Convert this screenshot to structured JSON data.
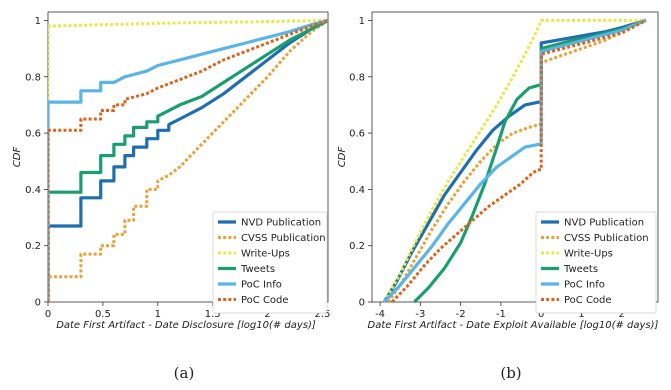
{
  "chart_data": [
    {
      "type": "line",
      "panel_label": "(a)",
      "xlabel": "Date First Artifact - Date Disclosure [log10(# days)]",
      "ylabel": "CDF",
      "xlim": [
        0,
        2.55
      ],
      "ylim": [
        0,
        1.03
      ],
      "xticks": [
        "0",
        "0.5",
        "1",
        "1.5",
        "2",
        "2.5"
      ],
      "yticks": [
        "0",
        "0.2",
        "0.4",
        "0.6",
        "0.8",
        "1"
      ],
      "grid": false,
      "legend_position": "bottom-right",
      "series": [
        {
          "name": "NVD Publication",
          "color": "#1f6fae",
          "dash": "solid",
          "points": [
            [
              0,
              0
            ],
            [
              0,
              0.27
            ],
            [
              0.3,
              0.27
            ],
            [
              0.3,
              0.37
            ],
            [
              0.48,
              0.37
            ],
            [
              0.48,
              0.43
            ],
            [
              0.6,
              0.43
            ],
            [
              0.6,
              0.48
            ],
            [
              0.7,
              0.48
            ],
            [
              0.7,
              0.52
            ],
            [
              0.78,
              0.52
            ],
            [
              0.78,
              0.55
            ],
            [
              0.9,
              0.55
            ],
            [
              0.9,
              0.58
            ],
            [
              1.0,
              0.58
            ],
            [
              1.0,
              0.61
            ],
            [
              1.1,
              0.61
            ],
            [
              1.1,
              0.63
            ],
            [
              1.2,
              0.65
            ],
            [
              1.4,
              0.69
            ],
            [
              1.6,
              0.74
            ],
            [
              1.8,
              0.8
            ],
            [
              2.0,
              0.86
            ],
            [
              2.2,
              0.92
            ],
            [
              2.4,
              0.97
            ],
            [
              2.55,
              1.0
            ]
          ]
        },
        {
          "name": "CVSS Publication",
          "color": "#e8a23a",
          "dash": "dotted",
          "points": [
            [
              0,
              0
            ],
            [
              0,
              0.09
            ],
            [
              0.3,
              0.09
            ],
            [
              0.3,
              0.17
            ],
            [
              0.48,
              0.17
            ],
            [
              0.48,
              0.2
            ],
            [
              0.6,
              0.2
            ],
            [
              0.6,
              0.24
            ],
            [
              0.7,
              0.24
            ],
            [
              0.7,
              0.29
            ],
            [
              0.78,
              0.29
            ],
            [
              0.78,
              0.34
            ],
            [
              0.9,
              0.34
            ],
            [
              0.9,
              0.4
            ],
            [
              1.0,
              0.4
            ],
            [
              1.0,
              0.43
            ],
            [
              1.1,
              0.45
            ],
            [
              1.2,
              0.48
            ],
            [
              1.3,
              0.52
            ],
            [
              1.4,
              0.56
            ],
            [
              1.6,
              0.64
            ],
            [
              1.8,
              0.72
            ],
            [
              2.0,
              0.8
            ],
            [
              2.2,
              0.89
            ],
            [
              2.4,
              0.96
            ],
            [
              2.55,
              1.0
            ]
          ]
        },
        {
          "name": "Write-Ups",
          "color": "#e8e84a",
          "dash": "dotted",
          "points": [
            [
              0,
              0
            ],
            [
              0,
              0.98
            ],
            [
              0.5,
              0.985
            ],
            [
              1.0,
              0.99
            ],
            [
              1.5,
              0.993
            ],
            [
              2.0,
              0.996
            ],
            [
              2.55,
              1.0
            ]
          ]
        },
        {
          "name": "Tweets",
          "color": "#1a9e6e",
          "dash": "solid",
          "points": [
            [
              0,
              0
            ],
            [
              0,
              0.39
            ],
            [
              0.3,
              0.39
            ],
            [
              0.3,
              0.46
            ],
            [
              0.48,
              0.46
            ],
            [
              0.48,
              0.52
            ],
            [
              0.6,
              0.52
            ],
            [
              0.6,
              0.56
            ],
            [
              0.7,
              0.56
            ],
            [
              0.7,
              0.59
            ],
            [
              0.78,
              0.59
            ],
            [
              0.78,
              0.62
            ],
            [
              0.9,
              0.62
            ],
            [
              0.9,
              0.64
            ],
            [
              1.0,
              0.64
            ],
            [
              1.0,
              0.66
            ],
            [
              1.2,
              0.7
            ],
            [
              1.4,
              0.73
            ],
            [
              1.6,
              0.78
            ],
            [
              1.8,
              0.83
            ],
            [
              2.0,
              0.88
            ],
            [
              2.2,
              0.93
            ],
            [
              2.4,
              0.97
            ],
            [
              2.55,
              1.0
            ]
          ]
        },
        {
          "name": "PoC Info",
          "color": "#5ab4e5",
          "dash": "solid",
          "points": [
            [
              0,
              0
            ],
            [
              0,
              0.71
            ],
            [
              0.3,
              0.71
            ],
            [
              0.3,
              0.75
            ],
            [
              0.48,
              0.75
            ],
            [
              0.48,
              0.78
            ],
            [
              0.6,
              0.78
            ],
            [
              0.7,
              0.8
            ],
            [
              0.9,
              0.82
            ],
            [
              1.0,
              0.84
            ],
            [
              1.2,
              0.86
            ],
            [
              1.4,
              0.88
            ],
            [
              1.6,
              0.9
            ],
            [
              1.8,
              0.92
            ],
            [
              2.0,
              0.94
            ],
            [
              2.2,
              0.96
            ],
            [
              2.4,
              0.985
            ],
            [
              2.55,
              1.0
            ]
          ]
        },
        {
          "name": "PoC Code",
          "color": "#d9641c",
          "dash": "dotted",
          "points": [
            [
              0,
              0
            ],
            [
              0,
              0.61
            ],
            [
              0.3,
              0.61
            ],
            [
              0.3,
              0.65
            ],
            [
              0.48,
              0.65
            ],
            [
              0.48,
              0.68
            ],
            [
              0.6,
              0.68
            ],
            [
              0.6,
              0.7
            ],
            [
              0.7,
              0.7
            ],
            [
              0.7,
              0.72
            ],
            [
              0.9,
              0.74
            ],
            [
              1.0,
              0.76
            ],
            [
              1.2,
              0.79
            ],
            [
              1.4,
              0.82
            ],
            [
              1.6,
              0.86
            ],
            [
              1.8,
              0.89
            ],
            [
              2.0,
              0.92
            ],
            [
              2.2,
              0.95
            ],
            [
              2.4,
              0.98
            ],
            [
              2.55,
              1.0
            ]
          ]
        }
      ]
    },
    {
      "type": "line",
      "panel_label": "(b)",
      "xlabel": "Date First Artifact - Date Exploit Available [log10(# days)]",
      "ylabel": "CDF",
      "xlim": [
        -4.2,
        2.9
      ],
      "ylim": [
        0,
        1.03
      ],
      "xticks": [
        "-4",
        "-3",
        "-2",
        "-1",
        "0",
        "1",
        "2"
      ],
      "yticks": [
        "0",
        "0.2",
        "0.4",
        "0.6",
        "0.8",
        "1"
      ],
      "grid": false,
      "legend_position": "bottom-right",
      "series": [
        {
          "name": "NVD Publication",
          "color": "#1f6fae",
          "dash": "solid",
          "points": [
            [
              -3.9,
              0
            ],
            [
              -3.6,
              0.07
            ],
            [
              -3.2,
              0.18
            ],
            [
              -2.8,
              0.28
            ],
            [
              -2.4,
              0.38
            ],
            [
              -2.0,
              0.46
            ],
            [
              -1.6,
              0.54
            ],
            [
              -1.2,
              0.61
            ],
            [
              -0.8,
              0.66
            ],
            [
              -0.4,
              0.7
            ],
            [
              -0.05,
              0.71
            ],
            [
              0,
              0.71
            ],
            [
              0,
              0.92
            ],
            [
              0.4,
              0.93
            ],
            [
              0.8,
              0.94
            ],
            [
              1.2,
              0.95
            ],
            [
              1.6,
              0.96
            ],
            [
              2.0,
              0.975
            ],
            [
              2.6,
              1.0
            ]
          ]
        },
        {
          "name": "CVSS Publication",
          "color": "#e8a23a",
          "dash": "dotted",
          "points": [
            [
              -3.8,
              0
            ],
            [
              -3.5,
              0.06
            ],
            [
              -3.1,
              0.16
            ],
            [
              -2.7,
              0.26
            ],
            [
              -2.3,
              0.35
            ],
            [
              -1.9,
              0.43
            ],
            [
              -1.5,
              0.5
            ],
            [
              -1.1,
              0.56
            ],
            [
              -0.7,
              0.6
            ],
            [
              -0.3,
              0.62
            ],
            [
              -0.05,
              0.63
            ],
            [
              0,
              0.63
            ],
            [
              0,
              0.85
            ],
            [
              0.4,
              0.87
            ],
            [
              0.8,
              0.89
            ],
            [
              1.2,
              0.91
            ],
            [
              1.6,
              0.93
            ],
            [
              2.0,
              0.96
            ],
            [
              2.6,
              1.0
            ]
          ]
        },
        {
          "name": "Write-Ups",
          "color": "#e8e84a",
          "dash": "dotted",
          "points": [
            [
              -3.9,
              0
            ],
            [
              -3.5,
              0.1
            ],
            [
              -3.1,
              0.22
            ],
            [
              -2.7,
              0.33
            ],
            [
              -2.3,
              0.43
            ],
            [
              -1.9,
              0.52
            ],
            [
              -1.5,
              0.61
            ],
            [
              -1.1,
              0.7
            ],
            [
              -0.7,
              0.8
            ],
            [
              -0.4,
              0.88
            ],
            [
              -0.15,
              0.95
            ],
            [
              0,
              1.0
            ],
            [
              2.6,
              1.0
            ]
          ]
        },
        {
          "name": "Tweets",
          "color": "#1a9e6e",
          "dash": "solid",
          "points": [
            [
              -3.15,
              0
            ],
            [
              -2.8,
              0.05
            ],
            [
              -2.4,
              0.12
            ],
            [
              -2.0,
              0.21
            ],
            [
              -1.7,
              0.31
            ],
            [
              -1.4,
              0.42
            ],
            [
              -1.1,
              0.55
            ],
            [
              -0.9,
              0.64
            ],
            [
              -0.6,
              0.72
            ],
            [
              -0.3,
              0.76
            ],
            [
              -0.05,
              0.77
            ],
            [
              0,
              0.77
            ],
            [
              0,
              0.9
            ],
            [
              0.4,
              0.915
            ],
            [
              0.8,
              0.93
            ],
            [
              1.2,
              0.94
            ],
            [
              1.6,
              0.955
            ],
            [
              2.0,
              0.97
            ],
            [
              2.6,
              1.0
            ]
          ]
        },
        {
          "name": "PoC Info",
          "color": "#5ab4e5",
          "dash": "solid",
          "points": [
            [
              -3.9,
              0
            ],
            [
              -3.5,
              0.06
            ],
            [
              -3.1,
              0.13
            ],
            [
              -2.7,
              0.2
            ],
            [
              -2.3,
              0.28
            ],
            [
              -1.9,
              0.35
            ],
            [
              -1.5,
              0.42
            ],
            [
              -1.1,
              0.48
            ],
            [
              -0.7,
              0.52
            ],
            [
              -0.4,
              0.55
            ],
            [
              -0.05,
              0.56
            ],
            [
              0,
              0.56
            ],
            [
              0,
              0.89
            ],
            [
              0.4,
              0.905
            ],
            [
              0.8,
              0.92
            ],
            [
              1.2,
              0.935
            ],
            [
              1.6,
              0.95
            ],
            [
              2.0,
              0.965
            ],
            [
              2.6,
              1.0
            ]
          ]
        },
        {
          "name": "PoC Code",
          "color": "#d9641c",
          "dash": "dotted",
          "points": [
            [
              -3.7,
              0
            ],
            [
              -3.3,
              0.06
            ],
            [
              -2.9,
              0.13
            ],
            [
              -2.5,
              0.19
            ],
            [
              -2.1,
              0.24
            ],
            [
              -1.7,
              0.29
            ],
            [
              -1.3,
              0.34
            ],
            [
              -0.9,
              0.38
            ],
            [
              -0.5,
              0.42
            ],
            [
              -0.2,
              0.46
            ],
            [
              -0.05,
              0.47
            ],
            [
              0,
              0.47
            ],
            [
              0,
              0.88
            ],
            [
              0.4,
              0.895
            ],
            [
              0.8,
              0.91
            ],
            [
              1.2,
              0.925
            ],
            [
              1.6,
              0.94
            ],
            [
              2.0,
              0.955
            ],
            [
              2.6,
              1.0
            ]
          ]
        }
      ]
    }
  ]
}
